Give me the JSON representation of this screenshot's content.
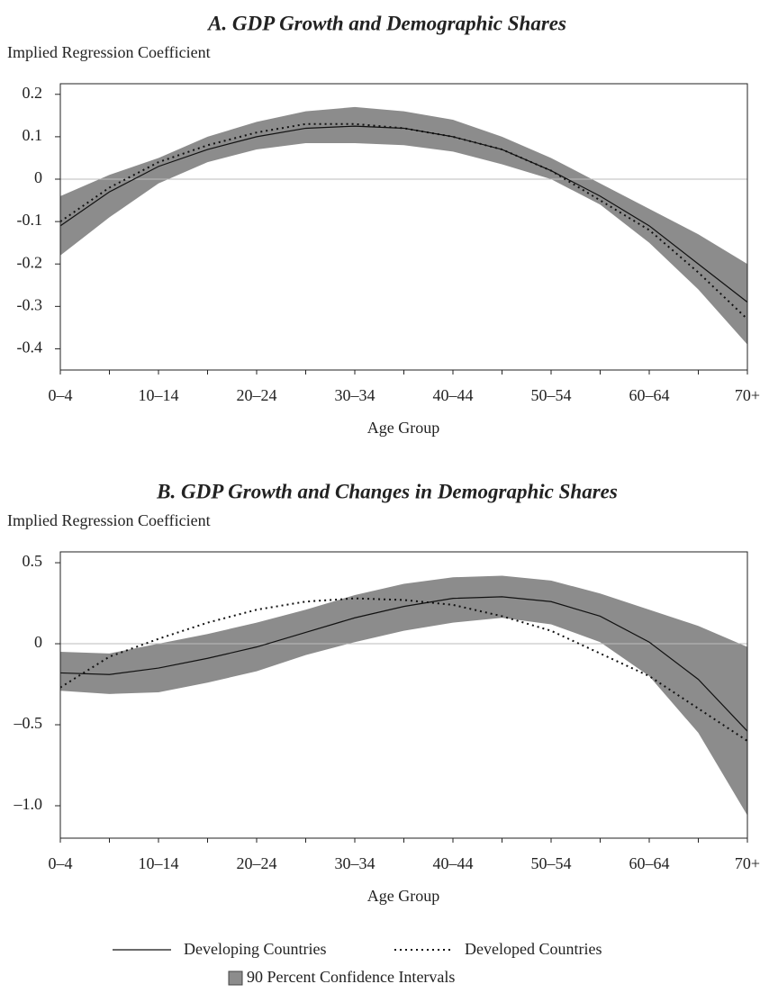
{
  "chart_data": [
    {
      "type": "line",
      "title": "A. GDP Growth and Demographic Shares",
      "y_label": "Implied Regression Coefficient",
      "x_label": "Age Group",
      "categories": [
        "0–4",
        null,
        "10–14",
        null,
        "20–24",
        null,
        "30–34",
        null,
        "40–44",
        null,
        "50–54",
        null,
        "60–64",
        null,
        "70+"
      ],
      "ylim": [
        -0.45,
        0.225
      ],
      "yticks": [
        -0.4,
        -0.3,
        -0.2,
        -0.1,
        0,
        0.1,
        0.2
      ],
      "reference_line": 0,
      "band": {
        "name": "90 Percent Confidence Intervals",
        "color": "#8c8c8c",
        "lower": [
          -0.18,
          -0.09,
          -0.01,
          0.04,
          0.07,
          0.085,
          0.085,
          0.08,
          0.065,
          0.035,
          0.0,
          -0.06,
          -0.15,
          -0.26,
          -0.39
        ],
        "upper": [
          -0.04,
          0.01,
          0.05,
          0.1,
          0.135,
          0.16,
          0.17,
          0.16,
          0.14,
          0.1,
          0.05,
          -0.01,
          -0.07,
          -0.13,
          -0.2
        ]
      },
      "series": [
        {
          "name": "Developing Countries",
          "color": "#111111",
          "line_style": "solid",
          "values": [
            -0.11,
            -0.03,
            0.03,
            0.07,
            0.1,
            0.12,
            0.125,
            0.12,
            0.1,
            0.07,
            0.02,
            -0.04,
            -0.11,
            -0.2,
            -0.29
          ]
        },
        {
          "name": "Developed Countries",
          "color": "#111111",
          "line_style": "dotted",
          "values": [
            -0.1,
            -0.02,
            0.04,
            0.08,
            0.11,
            0.13,
            0.13,
            0.12,
            0.1,
            0.07,
            0.02,
            -0.05,
            -0.12,
            -0.22,
            -0.33
          ]
        }
      ]
    },
    {
      "type": "line",
      "title": "B. GDP Growth and Changes in Demographic Shares",
      "y_label": "Implied Regression Coefficient",
      "x_label": "Age Group",
      "categories": [
        "0–4",
        null,
        "10–14",
        null,
        "20–24",
        null,
        "30–34",
        null,
        "40–44",
        null,
        "50–54",
        null,
        "60–64",
        null,
        "70+"
      ],
      "ylim": [
        -1.2,
        0.567
      ],
      "yticks": [
        {
          "value": -1.0,
          "label": "–1.0"
        },
        {
          "value": -0.5,
          "label": "–0.5"
        },
        0,
        0.5
      ],
      "reference_line": 0,
      "band": {
        "color": "#8c8c8c",
        "lower": [
          -0.29,
          -0.31,
          -0.3,
          -0.24,
          -0.17,
          -0.07,
          0.01,
          0.08,
          0.13,
          0.16,
          0.12,
          0.01,
          -0.2,
          -0.55,
          -1.06
        ],
        "upper": [
          -0.05,
          -0.06,
          0.0,
          0.06,
          0.13,
          0.21,
          0.3,
          0.37,
          0.41,
          0.42,
          0.39,
          0.31,
          0.21,
          0.11,
          -0.02
        ]
      },
      "series": [
        {
          "color": "#111111",
          "line_style": "solid",
          "values": [
            -0.18,
            -0.19,
            -0.15,
            -0.09,
            -0.02,
            0.07,
            0.16,
            0.23,
            0.28,
            0.29,
            0.26,
            0.17,
            0.01,
            -0.22,
            -0.54
          ]
        },
        {
          "color": "#111111",
          "line_style": "dotted",
          "values": [
            -0.27,
            -0.08,
            0.03,
            0.13,
            0.21,
            0.26,
            0.28,
            0.27,
            0.24,
            0.17,
            0.08,
            -0.06,
            -0.2,
            -0.4,
            -0.6
          ]
        }
      ]
    }
  ]
}
